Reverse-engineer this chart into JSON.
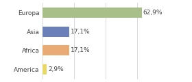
{
  "categories": [
    "Europa",
    "Asia",
    "Africa",
    "America"
  ],
  "values": [
    62.9,
    17.1,
    17.1,
    2.9
  ],
  "bar_colors": [
    "#a8bf8a",
    "#6b80b8",
    "#e8ab74",
    "#e8d86a"
  ],
  "labels": [
    "62,9%",
    "17,1%",
    "17,1%",
    "2,9%"
  ],
  "xlim": [
    0,
    80
  ],
  "background_color": "#ffffff",
  "bar_height": 0.55,
  "label_fontsize": 6.5,
  "tick_fontsize": 6.5,
  "grid_color": "#cccccc"
}
